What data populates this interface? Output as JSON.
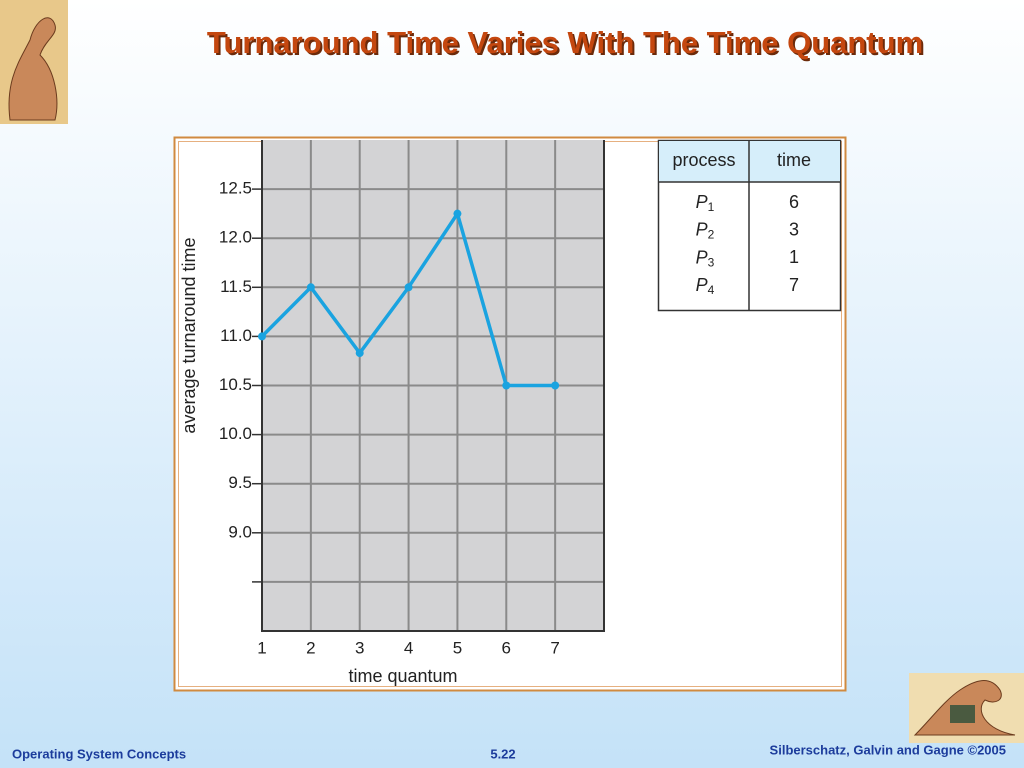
{
  "slide": {
    "title": "Turnaround Time Varies With The Time Quantum",
    "footer_left": "Operating System Concepts",
    "footer_center": "5.22",
    "footer_right": "Silberschatz, Galvin and Gagne ©2005"
  },
  "chart_data": {
    "type": "line",
    "xlabel": "time quantum",
    "ylabel": "average turnaround time",
    "x": [
      1,
      2,
      3,
      4,
      5,
      6,
      7
    ],
    "values": [
      11.0,
      11.5,
      10.83,
      11.5,
      12.25,
      10.5,
      10.5
    ],
    "color": "#1aa3e0",
    "xlim": [
      1,
      8
    ],
    "ylim": [
      8,
      13
    ],
    "xticks": [
      1,
      2,
      3,
      4,
      5,
      6,
      7
    ],
    "yticks": [
      {
        "value": 9,
        "label": "9.0"
      },
      {
        "value": 9.5,
        "label": "9.5"
      },
      {
        "value": 10,
        "label": "10.0"
      },
      {
        "value": 10.5,
        "label": "10.5"
      },
      {
        "value": 11,
        "label": "11.0"
      },
      {
        "value": 11.5,
        "label": "11.5"
      },
      {
        "value": 12,
        "label": "12.0"
      },
      {
        "value": 12.5,
        "label": "12.5"
      }
    ],
    "minor_yticks": [
      8.5
    ],
    "grid": true
  },
  "table": {
    "header": [
      "process",
      "time"
    ],
    "rows": [
      {
        "process": "P",
        "index": "1",
        "time": "6"
      },
      {
        "process": "P",
        "index": "2",
        "time": "3"
      },
      {
        "process": "P",
        "index": "3",
        "time": "1"
      },
      {
        "process": "P",
        "index": "4",
        "time": "7"
      }
    ]
  }
}
